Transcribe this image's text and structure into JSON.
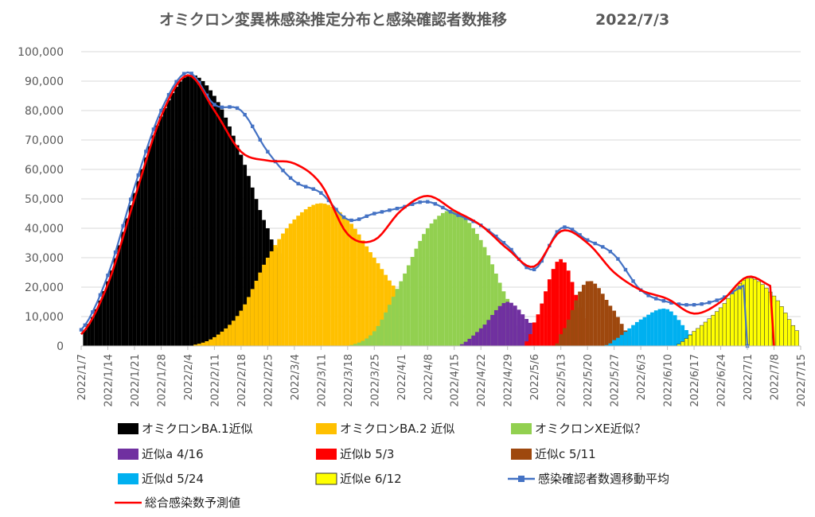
{
  "chart_data": {
    "type": "area",
    "title": "オミクロン変異株感染推定分布と感染確認者数推移",
    "date_label": "2022/7/3",
    "xlabel": "",
    "ylabel": "",
    "ylim": [
      0,
      100000
    ],
    "y_ticks": [
      0,
      10000,
      20000,
      30000,
      40000,
      50000,
      60000,
      70000,
      80000,
      90000,
      100000
    ],
    "y_tick_labels": [
      "0",
      "10,000",
      "20,000",
      "30,000",
      "40,000",
      "50,000",
      "60,000",
      "70,000",
      "80,000",
      "90,000",
      "100,000"
    ],
    "x_range": [
      "2022/1/7",
      "2022/7/15"
    ],
    "x_tick_labels": [
      "2022/1/7",
      "2022/1/14",
      "2022/1/21",
      "2022/1/28",
      "2022/2/4",
      "2022/2/11",
      "2022/2/18",
      "2022/2/25",
      "2022/3/4",
      "2022/3/11",
      "2022/3/18",
      "2022/3/25",
      "2022/4/1",
      "2022/4/8",
      "2022/4/15",
      "2022/4/22",
      "2022/4/29",
      "2022/5/6",
      "2022/5/13",
      "2022/5/20",
      "2022/5/27",
      "2022/6/3",
      "2022/6/10",
      "2022/6/17",
      "2022/6/24",
      "2022/7/1",
      "2022/7/8",
      "2022/7/15"
    ],
    "grid": true,
    "legend_position": "bottom",
    "series": [
      {
        "name": "オミクロンBA.1近似",
        "kind": "bars",
        "color": "#000000",
        "x": [
          "2022/1/7",
          "2022/1/14",
          "2022/1/21",
          "2022/1/28",
          "2022/2/4",
          "2022/2/11",
          "2022/2/18",
          "2022/2/25",
          "2022/3/1"
        ],
        "y": [
          4000,
          22000,
          52000,
          78000,
          92000,
          85000,
          65000,
          40000,
          30000
        ]
      },
      {
        "name": "オミクロンBA.2 近似",
        "kind": "bars",
        "color": "#FFC000",
        "x": [
          "2022/2/4",
          "2022/2/11",
          "2022/2/18",
          "2022/2/25",
          "2022/3/4",
          "2022/3/11",
          "2022/3/18",
          "2022/3/25",
          "2022/4/1"
        ],
        "y": [
          0,
          3000,
          12000,
          30000,
          43000,
          48500,
          43000,
          30000,
          18000
        ]
      },
      {
        "name": "オミクロンXE近似？",
        "kind": "bars",
        "color": "#92D050",
        "x": [
          "2022/3/18",
          "2022/3/25",
          "2022/4/1",
          "2022/4/8",
          "2022/4/15",
          "2022/4/22",
          "2022/4/29",
          "2022/5/4"
        ],
        "y": [
          0,
          5000,
          22000,
          40000,
          46000,
          36000,
          16000,
          3000
        ]
      },
      {
        "name": "近似a 4/16",
        "kind": "bars",
        "color": "#7030A0",
        "x": [
          "2022/4/16",
          "2022/4/22",
          "2022/4/29",
          "2022/5/6"
        ],
        "y": [
          0,
          6000,
          15000,
          7000
        ]
      },
      {
        "name": "近似b 5/3",
        "kind": "bars",
        "color": "#FF0000",
        "x": [
          "2022/5/3",
          "2022/5/6",
          "2022/5/13",
          "2022/5/20"
        ],
        "y": [
          0,
          8000,
          29500,
          7000
        ]
      },
      {
        "name": "近似c 5/11",
        "kind": "bars",
        "color": "#9E480E",
        "x": [
          "2022/5/11",
          "2022/5/13",
          "2022/5/20",
          "2022/5/27",
          "2022/6/1"
        ],
        "y": [
          0,
          4000,
          22000,
          12000,
          2000
        ]
      },
      {
        "name": "近似d 5/24",
        "kind": "bars",
        "color": "#00B0F0",
        "x": [
          "2022/5/24",
          "2022/5/27",
          "2022/6/3",
          "2022/6/10",
          "2022/6/17"
        ],
        "y": [
          0,
          2000,
          9000,
          12500,
          3000
        ]
      },
      {
        "name": "近似e 6/12",
        "kind": "bars",
        "color": "#FFFF00",
        "x": [
          "2022/6/12",
          "2022/6/17",
          "2022/6/24",
          "2022/7/1",
          "2022/7/8",
          "2022/7/15"
        ],
        "y": [
          0,
          5000,
          13000,
          23000,
          17000,
          4000
        ]
      },
      {
        "name": "感染確認者数週移動平均",
        "kind": "line-markers",
        "color": "#4472C4",
        "x": [
          "2022/1/7",
          "2022/1/14",
          "2022/1/21",
          "2022/1/28",
          "2022/2/4",
          "2022/2/11",
          "2022/2/18",
          "2022/2/25",
          "2022/3/4",
          "2022/3/11",
          "2022/3/18",
          "2022/3/25",
          "2022/4/1",
          "2022/4/8",
          "2022/4/15",
          "2022/4/22",
          "2022/4/29",
          "2022/5/6",
          "2022/5/13",
          "2022/5/20",
          "2022/5/27",
          "2022/6/3",
          "2022/6/10",
          "2022/6/17",
          "2022/6/24",
          "2022/7/1"
        ],
        "y": [
          5500,
          24000,
          54000,
          80000,
          93000,
          82000,
          80000,
          66000,
          56000,
          52000,
          43000,
          45000,
          47000,
          49000,
          45000,
          41000,
          34000,
          26000,
          40000,
          36000,
          31000,
          19000,
          15000,
          14000,
          16000,
          21000
        ]
      },
      {
        "name": "総合感染数予測値",
        "kind": "line",
        "color": "#FF0000",
        "x": [
          "2022/1/7",
          "2022/1/14",
          "2022/1/21",
          "2022/1/28",
          "2022/2/4",
          "2022/2/11",
          "2022/2/18",
          "2022/2/25",
          "2022/3/4",
          "2022/3/11",
          "2022/3/18",
          "2022/3/25",
          "2022/4/1",
          "2022/4/8",
          "2022/4/15",
          "2022/4/22",
          "2022/4/29",
          "2022/5/6",
          "2022/5/13",
          "2022/5/20",
          "2022/5/27",
          "2022/6/3",
          "2022/6/10",
          "2022/6/17",
          "2022/6/24",
          "2022/7/1",
          "2022/7/8"
        ],
        "y": [
          4000,
          21000,
          50000,
          78000,
          92000,
          80000,
          66000,
          63000,
          62000,
          55000,
          38000,
          36000,
          46000,
          51000,
          46000,
          41000,
          33000,
          27000,
          39000,
          35000,
          25000,
          19000,
          16000,
          11000,
          15000,
          23500,
          20000
        ]
      }
    ]
  }
}
